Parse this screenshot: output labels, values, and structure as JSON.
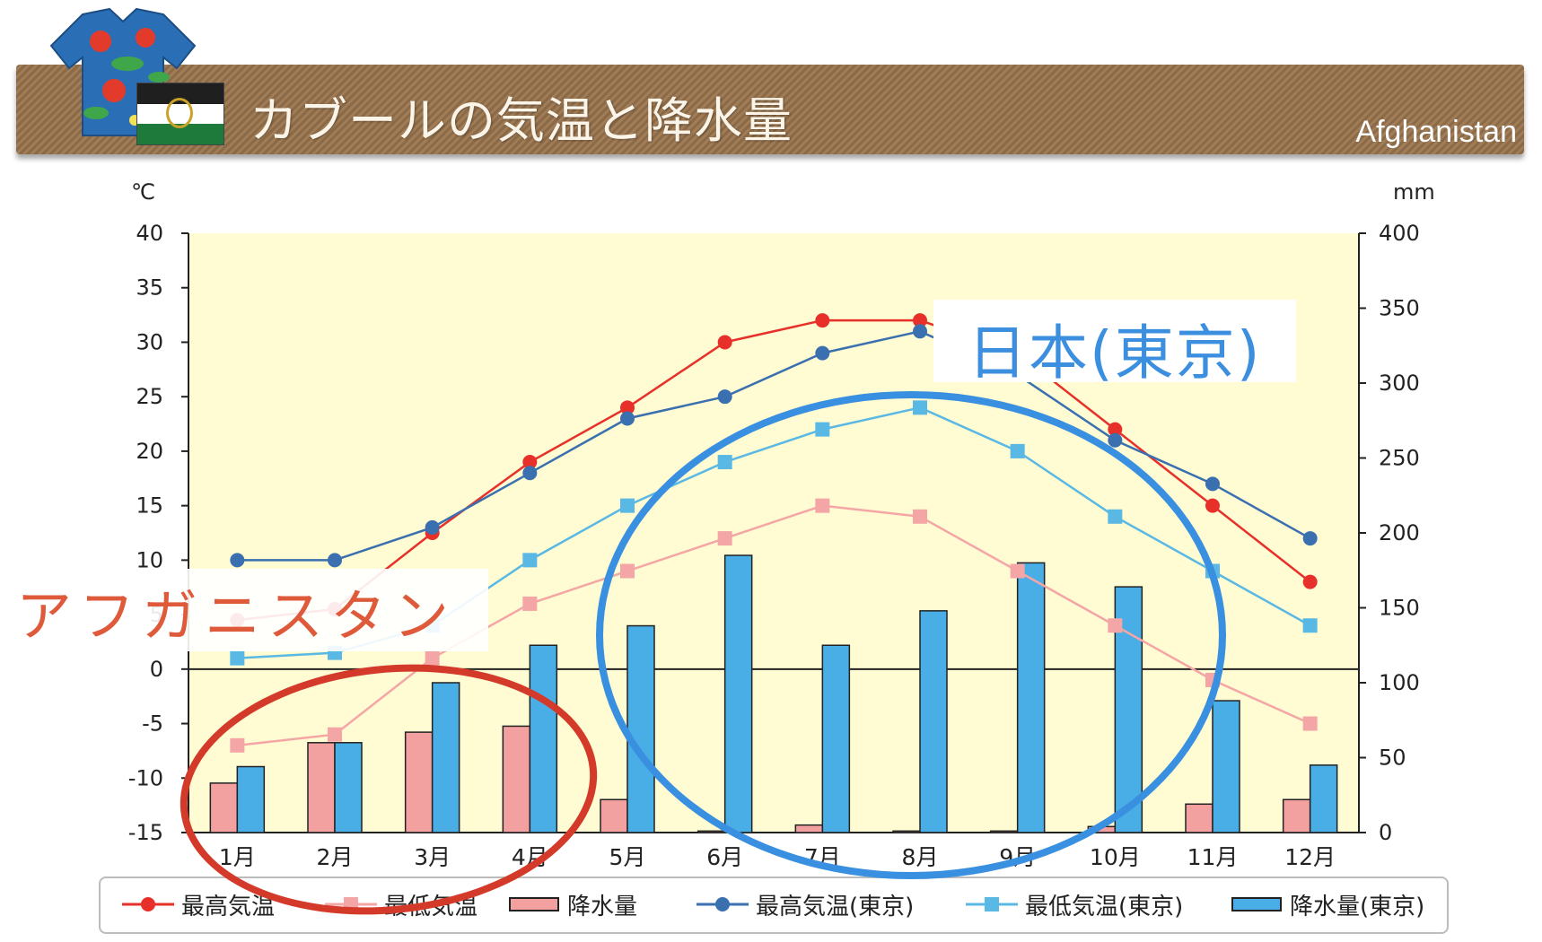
{
  "header": {
    "title": "カブールの気温と降水量",
    "country": "Afghanistan"
  },
  "annotations": {
    "afghanistan": "アフガニスタン",
    "japan": "日本(東京)"
  },
  "colors": {
    "kabul_high": "#e8302a",
    "kabul_low": "#f4a6a6",
    "kabul_precip": "#f2a0a0",
    "tokyo_high": "#3a6fb0",
    "tokyo_low": "#5ab8e4",
    "tokyo_precip": "#4aaee6",
    "plot_bg": "#fffbd2",
    "annot_red": "#d33a2a",
    "annot_blue": "#3a90e0"
  },
  "chart_data": {
    "type": "bar",
    "categories": [
      "1月",
      "2月",
      "3月",
      "4月",
      "5月",
      "6月",
      "7月",
      "8月",
      "9月",
      "10月",
      "11月",
      "12月"
    ],
    "y_left": {
      "unit": "℃",
      "range": [
        -15,
        40
      ],
      "ticks": [
        40,
        35,
        30,
        25,
        20,
        15,
        10,
        5,
        0,
        -5,
        -10,
        -15
      ]
    },
    "y_right": {
      "unit": "mm",
      "range": [
        0,
        400
      ],
      "ticks": [
        400,
        350,
        300,
        250,
        200,
        150,
        100,
        50,
        0
      ]
    },
    "series": [
      {
        "name": "最高気温",
        "kind": "line",
        "axis": "left",
        "marker": "circle",
        "color": "#e8302a",
        "values": [
          4.5,
          5.5,
          12.5,
          19,
          24,
          30,
          32,
          32,
          29,
          22,
          15,
          8
        ]
      },
      {
        "name": "最低気温",
        "kind": "line",
        "axis": "left",
        "marker": "square",
        "color": "#f4a6a6",
        "values": [
          -7,
          -6,
          1,
          6,
          9,
          12,
          15,
          14,
          9,
          4,
          -1,
          -5
        ]
      },
      {
        "name": "降水量",
        "kind": "bar",
        "axis": "right",
        "color": "#f2a0a0",
        "values": [
          33,
          60,
          67,
          71,
          22,
          1,
          5,
          1,
          1,
          4,
          19,
          22
        ]
      },
      {
        "name": "最高気温(東京)",
        "kind": "line",
        "axis": "left",
        "marker": "circle",
        "color": "#3a6fb0",
        "values": [
          10,
          10,
          13,
          18,
          23,
          25,
          29,
          31,
          27,
          21,
          17,
          12
        ]
      },
      {
        "name": "最低気温(東京)",
        "kind": "line",
        "axis": "left",
        "marker": "square",
        "color": "#5ab8e4",
        "values": [
          1,
          1.5,
          4,
          10,
          15,
          19,
          22,
          24,
          20,
          14,
          9,
          4
        ]
      },
      {
        "name": "降水量(東京)",
        "kind": "bar",
        "axis": "right",
        "color": "#4aaee6",
        "values": [
          44,
          60,
          100,
          125,
          138,
          185,
          125,
          148,
          180,
          164,
          88,
          45
        ]
      }
    ]
  }
}
